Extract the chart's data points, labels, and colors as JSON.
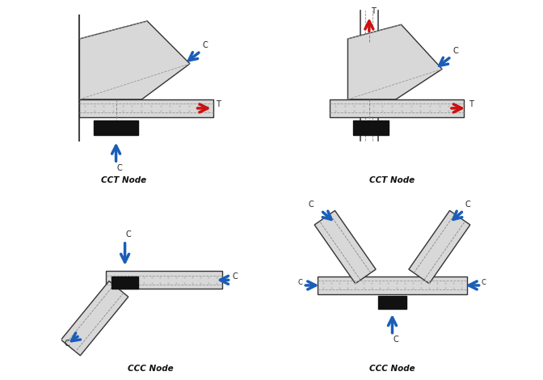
{
  "bg_color": "#ffffff",
  "strut_fill": "#d8d8d8",
  "strut_edge": "#333333",
  "black_fill": "#111111",
  "arrow_blue": "#1a5eb8",
  "arrow_red": "#cc1111",
  "label_color": "#111111",
  "titles": [
    "CCT Node",
    "CCT Node",
    "CCC Node",
    "CCC Node"
  ]
}
